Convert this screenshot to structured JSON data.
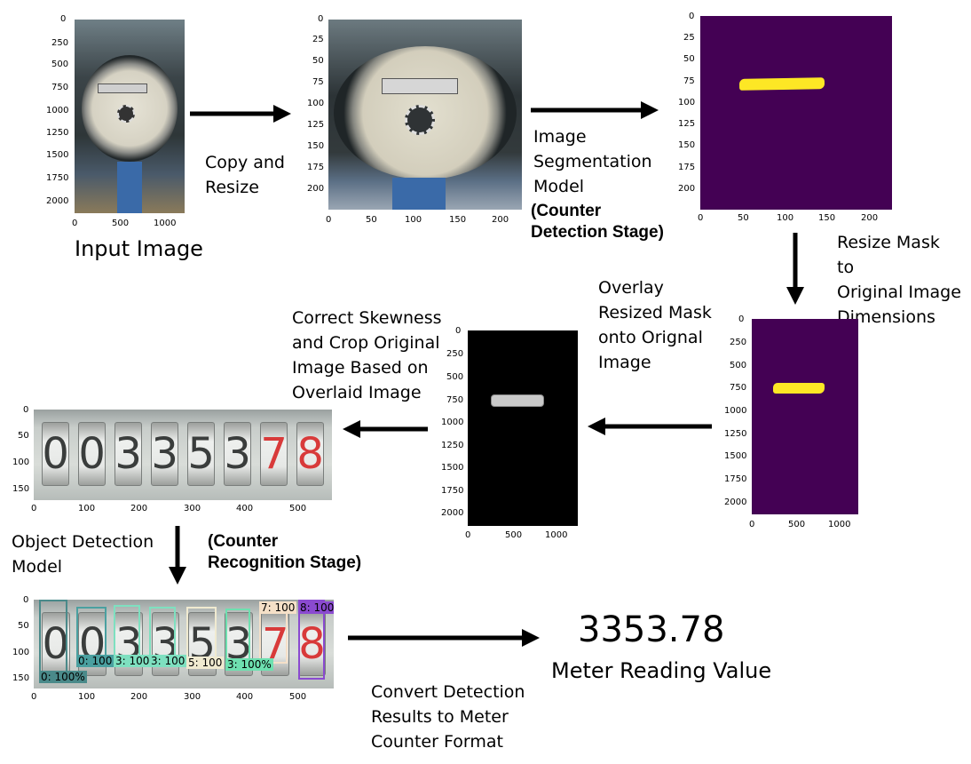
{
  "panels": {
    "input": {
      "caption": "Input Image",
      "yticks": [
        "0",
        "250",
        "500",
        "750",
        "1000",
        "1250",
        "1500",
        "1750",
        "2000"
      ],
      "xticks": [
        "0",
        "500",
        "1000"
      ]
    },
    "resized": {
      "yticks": [
        "0",
        "25",
        "50",
        "75",
        "100",
        "125",
        "150",
        "175",
        "200"
      ],
      "xticks": [
        "0",
        "50",
        "100",
        "150",
        "200"
      ]
    },
    "mask_small": {
      "yticks": [
        "0",
        "25",
        "50",
        "75",
        "100",
        "125",
        "150",
        "175",
        "200"
      ],
      "xticks": [
        "0",
        "50",
        "100",
        "150",
        "200"
      ]
    },
    "mask_large": {
      "yticks": [
        "0",
        "250",
        "500",
        "750",
        "1000",
        "1250",
        "1500",
        "1750",
        "2000"
      ],
      "xticks": [
        "0",
        "500",
        "1000"
      ]
    },
    "overlay": {
      "yticks": [
        "0",
        "250",
        "500",
        "750",
        "1000",
        "1250",
        "1500",
        "1750",
        "2000"
      ],
      "xticks": [
        "0",
        "500",
        "1000"
      ]
    },
    "crop": {
      "yticks": [
        "0",
        "50",
        "100",
        "150"
      ],
      "xticks": [
        "0",
        "100",
        "200",
        "300",
        "400",
        "500"
      ],
      "digits": [
        "0",
        "0",
        "3",
        "3",
        "5",
        "3",
        "7",
        "8"
      ]
    },
    "detection": {
      "yticks": [
        "0",
        "50",
        "100",
        "150"
      ],
      "xticks": [
        "0",
        "100",
        "200",
        "300",
        "400",
        "500"
      ],
      "labels": [
        "0: 100%",
        "0: 100",
        "3: 100",
        "3: 100",
        "5: 100",
        "3: 100%",
        "7: 100",
        "8: 100"
      ]
    }
  },
  "steps": {
    "copy_resize": "Copy and\nResize",
    "segmentation": "Image\nSegmentation\nModel",
    "counter_detection": "(Counter\nDetection Stage)",
    "resize_mask": "Resize Mask\nto\nOriginal Image\nDimensions",
    "overlay": "Overlay\nResized Mask\nonto Orignal\nImage",
    "correct_skew": "Correct Skewness\nand Crop Original\nImage Based on\nOverlaid Image",
    "object_detection": "Object Detection\nModel",
    "counter_recognition": "(Counter\nRecognition Stage)",
    "convert": "Convert Detection\nResults to Meter\nCounter Format"
  },
  "result": {
    "value": "3353.78",
    "label": "Meter Reading Value"
  },
  "colors": {
    "mask_bg": "#440154",
    "mask_fg": "#fde725",
    "arrow": "#000000"
  }
}
